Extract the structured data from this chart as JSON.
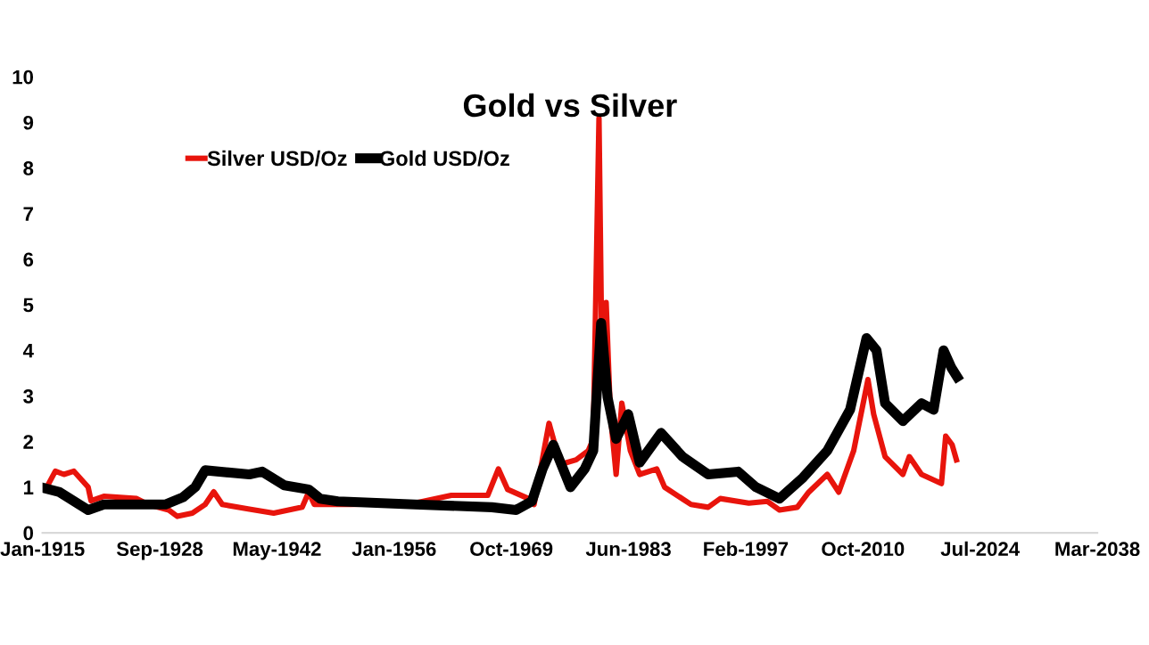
{
  "chart_data": {
    "type": "line",
    "title": "Gold vs Silver",
    "legend": "top left",
    "grid": false,
    "line_style": "solid",
    "xlim": [
      "1915-01-01",
      "2038-03-16"
    ],
    "xticks": [
      {
        "value": "1915-01-01",
        "label": "Jan-1915"
      },
      {
        "value": "1928-09-09",
        "label": "Sep-1928"
      },
      {
        "value": "1942-05-19",
        "label": "May-1942"
      },
      {
        "value": "1956-01-26",
        "label": "Jan-1956"
      },
      {
        "value": "1969-10-04",
        "label": "Oct-1969"
      },
      {
        "value": "1983-06-13",
        "label": "Jun-1983"
      },
      {
        "value": "1997-02-19",
        "label": "Feb-1997"
      },
      {
        "value": "2010-10-29",
        "label": "Oct-2010"
      },
      {
        "value": "2024-07-07",
        "label": "Jul-2024"
      },
      {
        "value": "2038-03-16",
        "label": "Mar-2038"
      }
    ],
    "ylim": [
      0,
      10
    ],
    "yticks": [
      0,
      1,
      2,
      3,
      4,
      5,
      6,
      7,
      8,
      9,
      10
    ],
    "series": [
      {
        "name": "Silver USD/Oz",
        "color": "#e8140c",
        "x": [
          "1915-07",
          "1916-07",
          "1917-07",
          "1918-09",
          "1920-05",
          "1920-09",
          "1922-03",
          "1926-01",
          "1927-05",
          "1929-10",
          "1930-10",
          "1932-07",
          "1934-01",
          "1935-01",
          "1936-01",
          "1939-03",
          "1942-01",
          "1945-05",
          "1946-02",
          "1946-10",
          "1951-01",
          "1958-07",
          "1962-10",
          "1967-01",
          "1968-04",
          "1969-05",
          "1971-10",
          "1972-06",
          "1974-03",
          "1975-07",
          "1977-05",
          "1978-10",
          "1979-05",
          "1980-01",
          "1980-05",
          "1980-11",
          "1981-05",
          "1982-01",
          "1982-09",
          "1983-09",
          "1984-10",
          "1986-10",
          "1987-09",
          "1990-10",
          "1992-10",
          "1994-03",
          "1997-07",
          "1999-09",
          "2001-02",
          "2003-03",
          "2004-07",
          "2006-09",
          "2008-01",
          "2009-10",
          "2011-06",
          "2012-02",
          "2013-06",
          "2015-07",
          "2016-04",
          "2017-09",
          "2020-01",
          "2020-07",
          "2021-04",
          "2021-10"
        ],
        "values": [
          1.0,
          1.35,
          1.28,
          1.35,
          1.0,
          0.7,
          0.8,
          0.75,
          0.62,
          0.5,
          0.36,
          0.43,
          0.62,
          0.9,
          0.62,
          0.52,
          0.43,
          0.56,
          0.89,
          0.62,
          0.62,
          0.65,
          0.82,
          0.82,
          1.4,
          0.95,
          0.75,
          0.62,
          2.4,
          1.5,
          1.6,
          1.8,
          2.06,
          9.09,
          3.9,
          5.05,
          2.6,
          1.28,
          2.84,
          1.8,
          1.28,
          1.4,
          1.0,
          0.62,
          0.56,
          0.75,
          0.65,
          0.69,
          0.5,
          0.56,
          0.89,
          1.28,
          0.89,
          1.8,
          3.36,
          2.6,
          1.67,
          1.28,
          1.67,
          1.28,
          1.08,
          2.12,
          1.93,
          1.6
        ]
      },
      {
        "name": "Gold USD/Oz",
        "color": "#000000",
        "x": [
          "1915-01",
          "1917-01",
          "1920-05",
          "1922-03",
          "1929-05",
          "1931-06",
          "1932-11",
          "1934-01",
          "1939-03",
          "1940-09",
          "1943-04",
          "1946-02",
          "1947-06",
          "1949-07",
          "1958-07",
          "1967-07",
          "1970-05",
          "1972-03",
          "1973-06",
          "1974-09",
          "1976-09",
          "1978-05",
          "1979-05",
          "1980-04",
          "1981-01",
          "1982-01",
          "1983-06",
          "1984-10",
          "1987-04",
          "1989-10",
          "1992-10",
          "1996-04",
          "1998-05",
          "2001-02",
          "2003-11",
          "2006-09",
          "2009-05",
          "2011-04",
          "2012-06",
          "2013-06",
          "2015-07",
          "2017-09",
          "2019-02",
          "2020-04",
          "2021-03",
          "2021-11"
        ],
        "values": [
          0.99,
          0.89,
          0.5,
          0.62,
          0.62,
          0.78,
          1.0,
          1.37,
          1.28,
          1.34,
          1.04,
          0.95,
          0.75,
          0.69,
          0.62,
          0.56,
          0.5,
          0.69,
          1.4,
          1.93,
          1.0,
          1.4,
          1.8,
          4.6,
          2.97,
          2.06,
          2.6,
          1.54,
          2.19,
          1.67,
          1.28,
          1.34,
          1.0,
          0.75,
          1.21,
          1.8,
          2.7,
          4.27,
          4.0,
          2.84,
          2.45,
          2.84,
          2.7,
          4.0,
          3.62,
          3.42
        ]
      }
    ]
  }
}
